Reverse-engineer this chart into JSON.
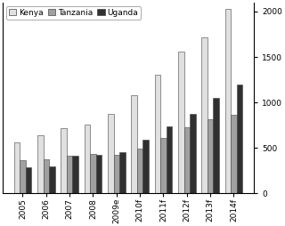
{
  "categories": [
    "2005",
    "2006",
    "2007",
    "2008",
    "2009e",
    "2010f",
    "2011f",
    "2012f",
    "2013f",
    "2014f"
  ],
  "kenya": [
    560,
    640,
    720,
    760,
    870,
    1080,
    1300,
    1560,
    1720,
    2030
  ],
  "tanzania": [
    360,
    370,
    410,
    430,
    420,
    490,
    610,
    730,
    810,
    860
  ],
  "uganda": [
    290,
    300,
    410,
    420,
    450,
    590,
    740,
    870,
    1050,
    1200
  ],
  "kenya_color": "#e0e0e0",
  "tanzania_color": "#a0a0a0",
  "uganda_color": "#303030",
  "ylim": [
    0,
    2100
  ],
  "yticks": [
    0,
    500,
    1000,
    1500,
    2000
  ],
  "background_color": "#ffffff",
  "bar_width": 0.25,
  "edge_color": "#444444",
  "legend_fontsize": 6.5,
  "tick_fontsize": 6.5
}
